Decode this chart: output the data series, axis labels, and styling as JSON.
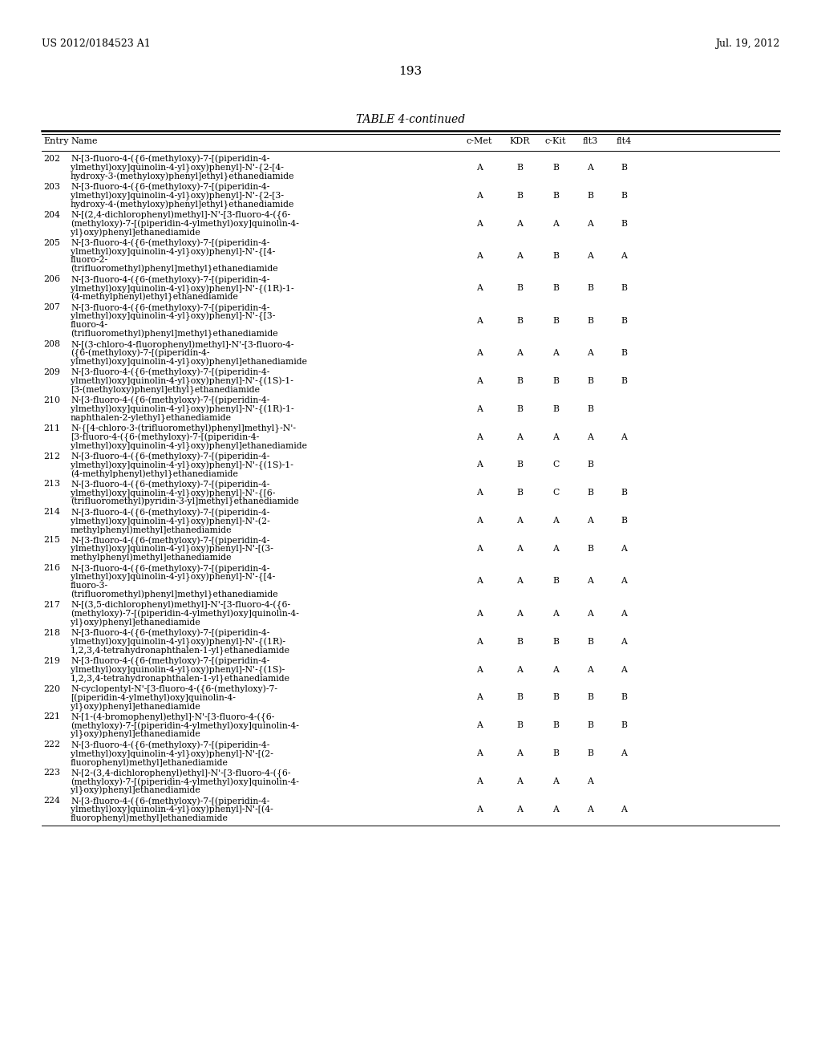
{
  "header_left": "US 2012/0184523 A1",
  "header_right": "Jul. 19, 2012",
  "page_number": "193",
  "table_title": "TABLE 4-continued",
  "background_color": "#ffffff",
  "text_color": "#000000",
  "rows": [
    {
      "entry": "202",
      "name": "N-[3-fluoro-4-({6-(methyloxy)-7-[(piperidin-4-\nylmethyl)oxy]quinolin-4-yl}oxy)phenyl]-N'-{2-[4-\nhydroxy-3-(methyloxy)phenyl]ethyl}ethanediamide",
      "cmet": "A",
      "kdr": "B",
      "ckit": "B",
      "flt3": "A",
      "flt4": "B"
    },
    {
      "entry": "203",
      "name": "N-[3-fluoro-4-({6-(methyloxy)-7-[(piperidin-4-\nylmethyl)oxy]quinolin-4-yl}oxy)phenyl]-N'-{2-[3-\nhydroxy-4-(methyloxy)phenyl]ethyl}ethanediamide",
      "cmet": "A",
      "kdr": "B",
      "ckit": "B",
      "flt3": "B",
      "flt4": "B"
    },
    {
      "entry": "204",
      "name": "N-[(2,4-dichlorophenyl)methyl]-N'-[3-fluoro-4-({6-\n(methyloxy)-7-[(piperidin-4-ylmethyl)oxy]quinolin-4-\nyl}oxy)phenyl]ethanediamide",
      "cmet": "A",
      "kdr": "A",
      "ckit": "A",
      "flt3": "A",
      "flt4": "B"
    },
    {
      "entry": "205",
      "name": "N-[3-fluoro-4-({6-(methyloxy)-7-[(piperidin-4-\nylmethyl)oxy]quinolin-4-yl}oxy)phenyl]-N'-{[4-\nfluoro-2-\n(trifluoromethyl)phenyl]methyl}ethanediamide",
      "cmet": "A",
      "kdr": "A",
      "ckit": "B",
      "flt3": "A",
      "flt4": "A"
    },
    {
      "entry": "206",
      "name": "N-[3-fluoro-4-({6-(methyloxy)-7-[(piperidin-4-\nylmethyl)oxy]quinolin-4-yl}oxy)phenyl]-N'-{(1R)-1-\n(4-methylphenyl)ethyl}ethanediamide",
      "cmet": "A",
      "kdr": "B",
      "ckit": "B",
      "flt3": "B",
      "flt4": "B"
    },
    {
      "entry": "207",
      "name": "N-[3-fluoro-4-({6-(methyloxy)-7-[(piperidin-4-\nylmethyl)oxy]quinolin-4-yl}oxy)phenyl]-N'-{[3-\nfluoro-4-\n(trifluoromethyl)phenyl]methyl}ethanediamide",
      "cmet": "A",
      "kdr": "B",
      "ckit": "B",
      "flt3": "B",
      "flt4": "B"
    },
    {
      "entry": "208",
      "name": "N-[(3-chloro-4-fluorophenyl)methyl]-N'-[3-fluoro-4-\n({6-(methyloxy)-7-[(piperidin-4-\nylmethyl)oxy]quinolin-4-yl}oxy)phenyl]ethanediamide",
      "cmet": "A",
      "kdr": "A",
      "ckit": "A",
      "flt3": "A",
      "flt4": "B"
    },
    {
      "entry": "209",
      "name": "N-[3-fluoro-4-({6-(methyloxy)-7-[(piperidin-4-\nylmethyl)oxy]quinolin-4-yl}oxy)phenyl]-N'-{(1S)-1-\n[3-(methyloxy)phenyl]ethyl}ethanediamide",
      "cmet": "A",
      "kdr": "B",
      "ckit": "B",
      "flt3": "B",
      "flt4": "B"
    },
    {
      "entry": "210",
      "name": "N-[3-fluoro-4-({6-(methyloxy)-7-[(piperidin-4-\nylmethyl)oxy]quinolin-4-yl}oxy)phenyl]-N'-{(1R)-1-\nnaphthalen-2-ylethyl}ethanediamide",
      "cmet": "A",
      "kdr": "B",
      "ckit": "B",
      "flt3": "B",
      "flt4": ""
    },
    {
      "entry": "211",
      "name": "N-{[4-chloro-3-(trifluoromethyl)phenyl]methyl}-N'-\n[3-fluoro-4-({6-(methyloxy)-7-[(piperidin-4-\nylmethyl)oxy]quinolin-4-yl}oxy)phenyl]ethanediamide",
      "cmet": "A",
      "kdr": "A",
      "ckit": "A",
      "flt3": "A",
      "flt4": "A"
    },
    {
      "entry": "212",
      "name": "N-[3-fluoro-4-({6-(methyloxy)-7-[(piperidin-4-\nylmethyl)oxy]quinolin-4-yl}oxy)phenyl]-N'-{(1S)-1-\n(4-methylphenyl)ethyl}ethanediamide",
      "cmet": "A",
      "kdr": "B",
      "ckit": "C",
      "flt3": "B",
      "flt4": ""
    },
    {
      "entry": "213",
      "name": "N-[3-fluoro-4-({6-(methyloxy)-7-[(piperidin-4-\nylmethyl)oxy]quinolin-4-yl}oxy)phenyl]-N'-{[6-\n(trifluoromethyl)pyridin-3-yl]methyl}ethanediamide",
      "cmet": "A",
      "kdr": "B",
      "ckit": "C",
      "flt3": "B",
      "flt4": "B"
    },
    {
      "entry": "214",
      "name": "N-[3-fluoro-4-({6-(methyloxy)-7-[(piperidin-4-\nylmethyl)oxy]quinolin-4-yl}oxy)phenyl]-N'-(2-\nmethylphenyl)methyl]ethanediamide",
      "cmet": "A",
      "kdr": "A",
      "ckit": "A",
      "flt3": "A",
      "flt4": "B"
    },
    {
      "entry": "215",
      "name": "N-[3-fluoro-4-({6-(methyloxy)-7-[(piperidin-4-\nylmethyl)oxy]quinolin-4-yl}oxy)phenyl]-N'-[(3-\nmethylphenyl)methyl]ethanediamide",
      "cmet": "A",
      "kdr": "A",
      "ckit": "A",
      "flt3": "B",
      "flt4": "A"
    },
    {
      "entry": "216",
      "name": "N-[3-fluoro-4-({6-(methyloxy)-7-[(piperidin-4-\nylmethyl)oxy]quinolin-4-yl}oxy)phenyl]-N'-{[4-\nfluoro-3-\n(trifluoromethyl)phenyl]methyl}ethanediamide",
      "cmet": "A",
      "kdr": "A",
      "ckit": "B",
      "flt3": "A",
      "flt4": "A"
    },
    {
      "entry": "217",
      "name": "N-[(3,5-dichlorophenyl)methyl]-N'-[3-fluoro-4-({6-\n(methyloxy)-7-[(piperidin-4-ylmethyl)oxy]quinolin-4-\nyl}oxy)phenyl]ethanediamide",
      "cmet": "A",
      "kdr": "A",
      "ckit": "A",
      "flt3": "A",
      "flt4": "A"
    },
    {
      "entry": "218",
      "name": "N-[3-fluoro-4-({6-(methyloxy)-7-[(piperidin-4-\nylmethyl)oxy]quinolin-4-yl}oxy)phenyl]-N'-{(1R)-\n1,2,3,4-tetrahydronaphthalen-1-yl}ethanediamide",
      "cmet": "A",
      "kdr": "B",
      "ckit": "B",
      "flt3": "B",
      "flt4": "A"
    },
    {
      "entry": "219",
      "name": "N-[3-fluoro-4-({6-(methyloxy)-7-[(piperidin-4-\nylmethyl)oxy]quinolin-4-yl}oxy)phenyl]-N'-{(1S)-\n1,2,3,4-tetrahydronaphthalen-1-yl}ethanediamide",
      "cmet": "A",
      "kdr": "A",
      "ckit": "A",
      "flt3": "A",
      "flt4": "A"
    },
    {
      "entry": "220",
      "name": "N-cyclopentyl-N'-[3-fluoro-4-({6-(methyloxy)-7-\n[(piperidin-4-ylmethyl)oxy]quinolin-4-\nyl}oxy)phenyl]ethanediamide",
      "cmet": "A",
      "kdr": "B",
      "ckit": "B",
      "flt3": "B",
      "flt4": "B"
    },
    {
      "entry": "221",
      "name": "N-[1-(4-bromophenyl)ethyl]-N'-[3-fluoro-4-({6-\n(methyloxy)-7-[(piperidin-4-ylmethyl)oxy]quinolin-4-\nyl}oxy)phenyl]ethanediamide",
      "cmet": "A",
      "kdr": "B",
      "ckit": "B",
      "flt3": "B",
      "flt4": "B"
    },
    {
      "entry": "222",
      "name": "N-[3-fluoro-4-({6-(methyloxy)-7-[(piperidin-4-\nylmethyl)oxy]quinolin-4-yl}oxy)phenyl]-N'-[(2-\nfluorophenyl)methyl]ethanediamide",
      "cmet": "A",
      "kdr": "A",
      "ckit": "B",
      "flt3": "B",
      "flt4": "A"
    },
    {
      "entry": "223",
      "name": "N-[2-(3,4-dichlorophenyl)ethyl]-N'-[3-fluoro-4-({6-\n(methyloxy)-7-[(piperidin-4-ylmethyl)oxy]quinolin-4-\nyl}oxy)phenyl]ethanediamide",
      "cmet": "A",
      "kdr": "A",
      "ckit": "A",
      "flt3": "A",
      "flt4": ""
    },
    {
      "entry": "224",
      "name": "N-[3-fluoro-4-({6-(methyloxy)-7-[(piperidin-4-\nylmethyl)oxy]quinolin-4-yl}oxy)phenyl]-N'-[(4-\nfluorophenyl)methyl]ethanediamide",
      "cmet": "A",
      "kdr": "A",
      "ckit": "A",
      "flt3": "A",
      "flt4": "A"
    }
  ]
}
